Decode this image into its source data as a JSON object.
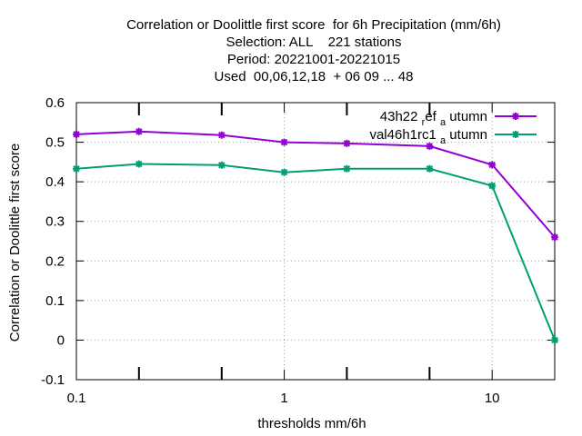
{
  "chart_data": {
    "type": "line",
    "title_lines": [
      "Correlation or Doolittle first score  for 6h Precipitation (mm/6h)",
      "Selection: ALL    221 stations",
      "Period: 20221001-20221015",
      "Used  00,06,12,18  + 06 09 ... 48"
    ],
    "xlabel": "thresholds mm/6h",
    "ylabel": "Correlation or Doolittle first score",
    "x_scale": "log",
    "xlim": [
      0.1,
      20
    ],
    "ylim": [
      -0.1,
      0.6
    ],
    "x_ticks": [
      0.1,
      1,
      10
    ],
    "x_tick_labels": [
      "0.1",
      "1",
      "10"
    ],
    "y_ticks": [
      -0.1,
      0,
      0.1,
      0.2,
      0.3,
      0.4,
      0.5,
      0.6
    ],
    "y_tick_labels": [
      "-0.1",
      "0",
      "0.1",
      "0.2",
      "0.3",
      "0.4",
      "0.5",
      "0.6"
    ],
    "grid": true,
    "legend_position": "top-right",
    "x": [
      0.1,
      0.2,
      0.5,
      1,
      2,
      5,
      10,
      20
    ],
    "series": [
      {
        "name": "43h22_ref_autumn",
        "legend_main": "43h22 ",
        "legend_sub1": "r",
        "legend_mid": "ef ",
        "legend_sub2": "a",
        "legend_end": " utumn",
        "color": "#9400d3",
        "values": [
          0.52,
          0.527,
          0.518,
          0.5,
          0.497,
          0.49,
          0.443,
          0.26
        ]
      },
      {
        "name": "val46h1rc1_autumn",
        "legend_main": "val46h1rc1 ",
        "legend_sub1": "a",
        "legend_end": " utumn",
        "color": "#009e73",
        "values": [
          0.433,
          0.445,
          0.442,
          0.424,
          0.433,
          0.433,
          0.39,
          0.0
        ]
      }
    ]
  }
}
